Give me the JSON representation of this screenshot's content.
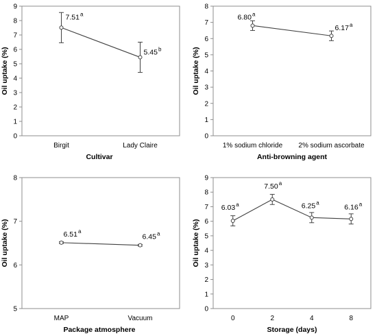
{
  "chart_data": [
    {
      "type": "line",
      "xlabel": "Cultivar",
      "ylabel": "Oil uptake (%)",
      "categories": [
        "Birgit",
        "Lady Claire"
      ],
      "values": [
        7.51,
        5.45
      ],
      "errors": [
        1.05,
        1.05
      ],
      "value_labels": [
        "7.51",
        "5.45"
      ],
      "letters": [
        "a",
        "b"
      ],
      "ylim": [
        0,
        9
      ],
      "yticks": [
        "0",
        "1",
        "2",
        "3",
        "4",
        "5",
        "6",
        "7",
        "8",
        "9"
      ],
      "grid": false
    },
    {
      "type": "line",
      "xlabel": "Anti-browning agent",
      "ylabel": "Oil uptake (%)",
      "categories": [
        "1% sodium chloride",
        "2% sodium ascorbate"
      ],
      "values": [
        6.8,
        6.17
      ],
      "errors": [
        0.3,
        0.3
      ],
      "value_labels": [
        "6.80",
        "6.17"
      ],
      "letters": [
        "a",
        "a"
      ],
      "ylim": [
        0,
        8
      ],
      "yticks": [
        "0",
        "1",
        "2",
        "3",
        "4",
        "5",
        "6",
        "7",
        "8"
      ],
      "grid": false
    },
    {
      "type": "line",
      "xlabel": "Package atmosphere",
      "ylabel": "Oil uptake (%)",
      "categories": [
        "MAP",
        "Vacuum"
      ],
      "values": [
        6.51,
        6.45
      ],
      "errors": [
        0.02,
        0.02
      ],
      "value_labels": [
        "6.51",
        "6.45"
      ],
      "letters": [
        "a",
        "a"
      ],
      "ylim": [
        5,
        8
      ],
      "yticks": [
        "5",
        "6",
        "7",
        "8"
      ],
      "grid": false
    },
    {
      "type": "line",
      "xlabel": "Storage (days)",
      "ylabel": "Oil uptake (%)",
      "categories": [
        "0",
        "2",
        "4",
        "8"
      ],
      "values": [
        6.03,
        7.5,
        6.25,
        6.16
      ],
      "errors": [
        0.35,
        0.35,
        0.35,
        0.35
      ],
      "value_labels": [
        "6.03",
        "7.50",
        "6.25",
        "6.16"
      ],
      "letters": [
        "a",
        "a",
        "a",
        "a"
      ],
      "ylim": [
        0,
        9
      ],
      "yticks": [
        "0",
        "1",
        "2",
        "3",
        "4",
        "5",
        "6",
        "7",
        "8",
        "9"
      ],
      "grid": false
    }
  ]
}
